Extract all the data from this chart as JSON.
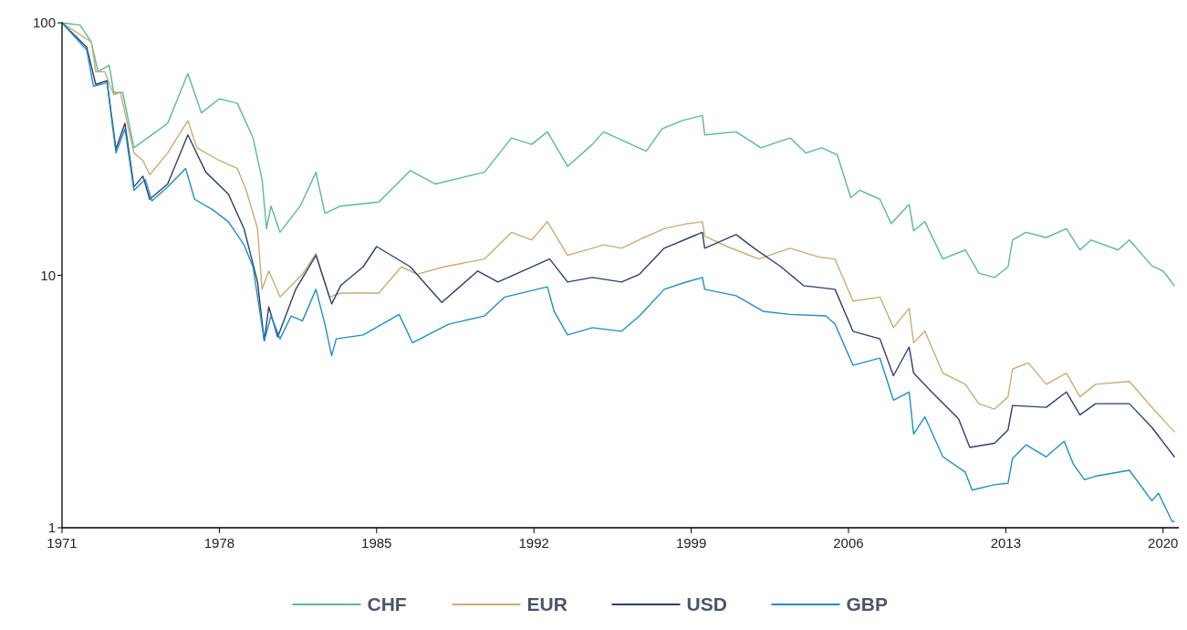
{
  "chart_data": {
    "type": "line",
    "log": "y",
    "grid": false,
    "legend": "bottom",
    "marker": "none",
    "line_style": "solid",
    "xlim": [
      1971,
      2020.7
    ],
    "xticks": [
      1971,
      1978,
      1985,
      1992,
      1999,
      2006,
      2013,
      2020
    ],
    "ylim": [
      1,
      100
    ],
    "yticks": [
      1,
      10,
      100
    ],
    "series": [
      {
        "name": "CHF",
        "color": "#5cb89a",
        "x": [
          1971,
          1971.8,
          1972.3,
          1972.6,
          1973.1,
          1973.3,
          1973.7,
          1974.2,
          1974.8,
          1975.7,
          1976.6,
          1977.2,
          1978,
          1978.8,
          1979.5,
          1979.9,
          1980.1,
          1980.3,
          1980.7,
          1981.6,
          1982.3,
          1982.7,
          1983.4,
          1985.1,
          1986.5,
          1987.6,
          1989.8,
          1991,
          1991.9,
          1992.6,
          1993.5,
          1994.6,
          1995.1,
          1997,
          1997.7,
          1998.6,
          1999.5,
          1999.6,
          2001,
          2002.1,
          2003.4,
          2004.1,
          2004.8,
          2005.5,
          2006.1,
          2006.5,
          2007.4,
          2007.9,
          2008.7,
          2008.9,
          2009.4,
          2010.2,
          2011.2,
          2011.8,
          2012.5,
          2013.1,
          2013.3,
          2013.9,
          2014.8,
          2015.7,
          2016.3,
          2016.8,
          2018,
          2018.5,
          2019.5,
          2020,
          2020.5
        ],
        "values": [
          100,
          98,
          84,
          64,
          68,
          53,
          53,
          32,
          35,
          40,
          63,
          44,
          50,
          48,
          35,
          24,
          15.3,
          18.8,
          14.8,
          18.8,
          25.6,
          17.6,
          18.8,
          19.5,
          26,
          23,
          25.6,
          35,
          33,
          37,
          27,
          33,
          37,
          31,
          38,
          41,
          43,
          36,
          37,
          32,
          35,
          30.5,
          32,
          30,
          20.3,
          21.7,
          20,
          16,
          19.1,
          15,
          16.3,
          11.6,
          12.6,
          10.2,
          9.8,
          10.8,
          13.8,
          14.8,
          14.1,
          15.3,
          12.6,
          13.8,
          12.6,
          13.8,
          10.9,
          10.4,
          9.1
        ]
      },
      {
        "name": "EUR",
        "color": "#c8ad75",
        "x": [
          1971,
          1972.3,
          1972.5,
          1972.9,
          1973.3,
          1973.6,
          1974.2,
          1974.6,
          1974.9,
          1975.7,
          1976.6,
          1977,
          1978,
          1978.8,
          1979.2,
          1979.7,
          1979.9,
          1980.2,
          1980.7,
          1981.7,
          1982.3,
          1982.9,
          1983.4,
          1985.1,
          1986.1,
          1986.8,
          1988,
          1989.8,
          1991,
          1991.9,
          1992.6,
          1993.5,
          1994.6,
          1995.1,
          1995.9,
          1996.9,
          1997.8,
          1998.8,
          1999.5,
          1999.6,
          2000.6,
          2002,
          2003.4,
          2004.7,
          2005.4,
          2006.2,
          2007.4,
          2008,
          2008.7,
          2008.9,
          2009.4,
          2010.2,
          2011.2,
          2011.8,
          2012.5,
          2013.1,
          2013.3,
          2014,
          2014.8,
          2015.7,
          2016.3,
          2017,
          2018.5,
          2019.5,
          2020.5
        ],
        "values": [
          100,
          84,
          64,
          64,
          52,
          53,
          30.5,
          28.5,
          25,
          30.5,
          41,
          32,
          28.5,
          26.5,
          21.7,
          15.3,
          8.8,
          10.4,
          8.2,
          10.1,
          12.2,
          8.2,
          8.5,
          8.5,
          10.8,
          10.1,
          10.8,
          11.6,
          14.8,
          13.8,
          16.3,
          12,
          12.8,
          13.2,
          12.8,
          14.1,
          15.3,
          16,
          16.3,
          14.3,
          13,
          11.6,
          12.8,
          11.8,
          11.6,
          7.9,
          8.2,
          6.2,
          7.4,
          5.4,
          6,
          4.1,
          3.7,
          3.1,
          2.95,
          3.3,
          4.25,
          4.5,
          3.7,
          4.1,
          3.3,
          3.7,
          3.8,
          3,
          2.4
        ]
      },
      {
        "name": "USD",
        "color": "#2e3f6e",
        "x": [
          1971,
          1972.1,
          1972.5,
          1973,
          1973.4,
          1973.8,
          1974.2,
          1974.6,
          1974.9,
          1975.7,
          1976.6,
          1977.4,
          1978.4,
          1979.1,
          1979.7,
          1980,
          1980.2,
          1980.6,
          1981.4,
          1982.3,
          1983,
          1983.4,
          1984.4,
          1985,
          1986.5,
          1987.9,
          1989.5,
          1990.4,
          1992.7,
          1993.5,
          1994.6,
          1995.9,
          1996.7,
          1997.8,
          1999.5,
          1999.6,
          2001,
          2001.8,
          2003,
          2004,
          2005.4,
          2006.2,
          2007.4,
          2008,
          2008.7,
          2008.9,
          2009.7,
          2010.9,
          2011.4,
          2012.5,
          2013.1,
          2013.3,
          2014.8,
          2015.7,
          2016.3,
          2017,
          2018.5,
          2019.5,
          2020.5
        ],
        "values": [
          100,
          80,
          57,
          59,
          31.6,
          40,
          22.4,
          24.7,
          20,
          23,
          36,
          25.6,
          21,
          15.3,
          9.4,
          5.5,
          7.5,
          5.7,
          8.8,
          12,
          7.7,
          9.1,
          10.8,
          13,
          10.8,
          7.8,
          10.4,
          9.4,
          11.6,
          9.4,
          9.8,
          9.4,
          10.1,
          12.8,
          14.8,
          12.8,
          14.5,
          12.8,
          10.8,
          9.1,
          8.8,
          6,
          5.6,
          4,
          5.2,
          4.1,
          3.45,
          2.7,
          2.08,
          2.16,
          2.44,
          3.05,
          3,
          3.45,
          2.8,
          3.1,
          3.1,
          2.5,
          1.91
        ]
      },
      {
        "name": "GBP",
        "color": "#1f8fc4",
        "x": [
          1971,
          1972.1,
          1972.4,
          1973,
          1973.4,
          1973.8,
          1974.2,
          1974.7,
          1975,
          1975.7,
          1976.5,
          1976.9,
          1977.7,
          1978.4,
          1979.1,
          1979.5,
          1980,
          1980.3,
          1980.7,
          1981.2,
          1981.7,
          1982.3,
          1982.7,
          1983,
          1983.2,
          1984.4,
          1986,
          1986.6,
          1988.2,
          1989.8,
          1990.7,
          1992.6,
          1992.9,
          1993.5,
          1994.6,
          1995.9,
          1996.7,
          1997.8,
          1998.6,
          1999.5,
          1999.6,
          2001,
          2002.2,
          2003.4,
          2005,
          2005.4,
          2006.2,
          2007.4,
          2008,
          2008.7,
          2008.9,
          2009.4,
          2010.2,
          2011.2,
          2011.5,
          2012.5,
          2013.1,
          2013.3,
          2013.9,
          2014.8,
          2015.6,
          2016,
          2016.5,
          2017,
          2018.5,
          2019.5,
          2019.8,
          2020.4,
          2020.5
        ],
        "values": [
          100,
          78,
          56,
          58,
          30.5,
          38,
          21.7,
          24,
          19.7,
          22.4,
          26.5,
          20,
          18.2,
          16.3,
          13.2,
          10.8,
          5.5,
          6.9,
          5.6,
          6.9,
          6.6,
          8.8,
          6.4,
          4.8,
          5.6,
          5.8,
          7,
          5.4,
          6.4,
          6.9,
          8.2,
          9,
          7.2,
          5.8,
          6.2,
          6,
          6.9,
          8.8,
          9.3,
          9.8,
          8.8,
          8.3,
          7.2,
          7,
          6.9,
          6.4,
          4.4,
          4.7,
          3.2,
          3.45,
          2.35,
          2.75,
          1.91,
          1.66,
          1.41,
          1.48,
          1.5,
          1.88,
          2.13,
          1.91,
          2.2,
          1.79,
          1.55,
          1.6,
          1.69,
          1.28,
          1.37,
          1.06,
          1.06
        ]
      }
    ]
  }
}
